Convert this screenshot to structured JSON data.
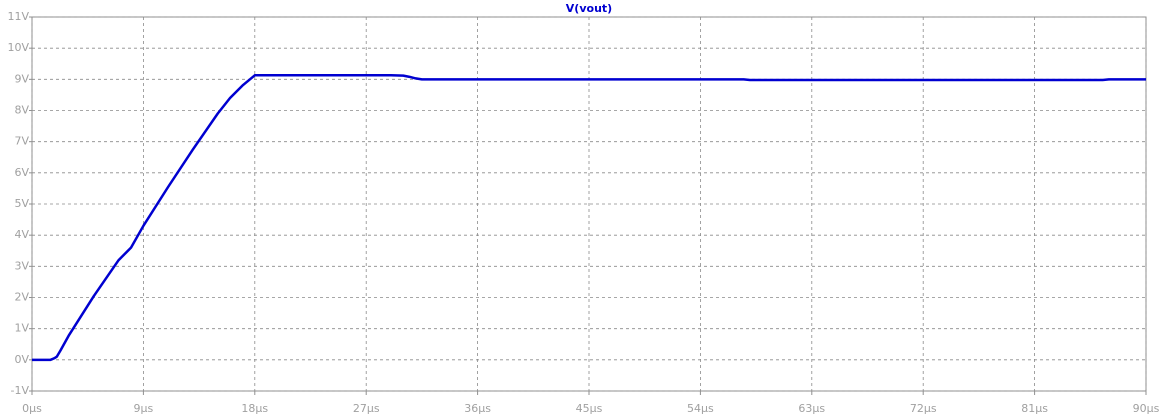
{
  "chart_data": {
    "type": "line",
    "x": [
      0,
      1.5,
      1.8,
      2.0,
      2.3,
      3,
      5,
      7,
      8,
      9,
      11,
      13,
      15,
      16,
      17,
      18,
      20,
      25,
      29,
      30,
      30.5,
      31,
      31.5,
      40,
      50,
      57.5,
      58,
      70,
      86.5,
      87,
      90
    ],
    "series": [
      {
        "name": "V(vout)",
        "color": "#0000d0",
        "values": [
          0,
          0,
          0.05,
          0.1,
          0.3,
          0.8,
          2.05,
          3.2,
          3.6,
          4.3,
          5.55,
          6.75,
          7.9,
          8.4,
          8.8,
          9.13,
          9.13,
          9.13,
          9.13,
          9.12,
          9.08,
          9.03,
          9.0,
          9.0,
          9.0,
          9.0,
          8.98,
          8.98,
          8.98,
          9.0,
          9.0
        ]
      }
    ],
    "xlim": [
      0,
      90
    ],
    "ylim": [
      -1,
      11
    ],
    "xticks": [
      {
        "value": 0,
        "label": "0µs"
      },
      {
        "value": 9,
        "label": "9µs"
      },
      {
        "value": 18,
        "label": "18µs"
      },
      {
        "value": 27,
        "label": "27µs"
      },
      {
        "value": 36,
        "label": "36µs"
      },
      {
        "value": 45,
        "label": "45µs"
      },
      {
        "value": 54,
        "label": "54µs"
      },
      {
        "value": 63,
        "label": "63µs"
      },
      {
        "value": 72,
        "label": "72µs"
      },
      {
        "value": 81,
        "label": "81µs"
      },
      {
        "value": 90,
        "label": "90µs"
      }
    ],
    "yticks": [
      {
        "value": -1,
        "label": "-1V"
      },
      {
        "value": 0,
        "label": "0V"
      },
      {
        "value": 1,
        "label": "1V"
      },
      {
        "value": 2,
        "label": "2V"
      },
      {
        "value": 3,
        "label": "3V"
      },
      {
        "value": 4,
        "label": "4V"
      },
      {
        "value": 5,
        "label": "5V"
      },
      {
        "value": 6,
        "label": "6V"
      },
      {
        "value": 7,
        "label": "7V"
      },
      {
        "value": 8,
        "label": "8V"
      },
      {
        "value": 9,
        "label": "9V"
      },
      {
        "value": 10,
        "label": "10V"
      },
      {
        "value": 11,
        "label": "11V"
      }
    ],
    "grid": true
  }
}
